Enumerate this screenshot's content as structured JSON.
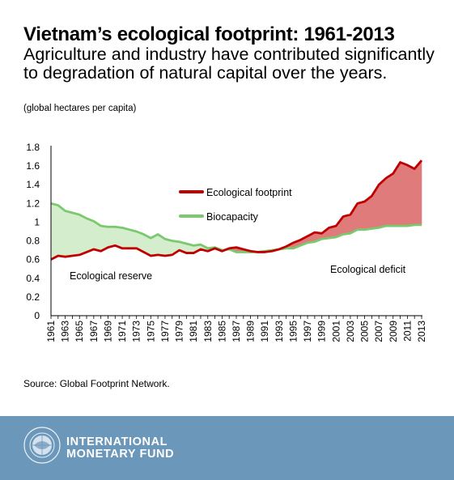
{
  "title": "Vietnam’s ecological footprint: 1961-2013",
  "subtitle": "Agriculture and industry have contributed significantly to degradation of natural capital over the years.",
  "units_note": "(global hectares per capita)",
  "source": "Source: Global Footprint Network.",
  "footer": {
    "org_line1": "INTERNATIONAL",
    "org_line2": "MONETARY FUND",
    "background": "#6b97ba"
  },
  "chart_data": {
    "type": "line",
    "x": [
      1961,
      1962,
      1963,
      1964,
      1965,
      1966,
      1967,
      1968,
      1969,
      1970,
      1971,
      1972,
      1973,
      1974,
      1975,
      1976,
      1977,
      1978,
      1979,
      1980,
      1981,
      1982,
      1983,
      1984,
      1985,
      1986,
      1987,
      1988,
      1989,
      1990,
      1991,
      1992,
      1993,
      1994,
      1995,
      1996,
      1997,
      1998,
      1999,
      2000,
      2001,
      2002,
      2003,
      2004,
      2005,
      2006,
      2007,
      2008,
      2009,
      2010,
      2011,
      2012,
      2013
    ],
    "series": [
      {
        "name": "Ecological footprint",
        "color": "#c00000",
        "values": [
          0.6,
          0.64,
          0.63,
          0.64,
          0.65,
          0.68,
          0.71,
          0.69,
          0.73,
          0.75,
          0.72,
          0.72,
          0.72,
          0.68,
          0.64,
          0.65,
          0.64,
          0.65,
          0.7,
          0.67,
          0.67,
          0.71,
          0.69,
          0.72,
          0.69,
          0.72,
          0.73,
          0.71,
          0.69,
          0.68,
          0.68,
          0.69,
          0.71,
          0.74,
          0.78,
          0.81,
          0.85,
          0.89,
          0.88,
          0.94,
          0.96,
          1.06,
          1.08,
          1.2,
          1.22,
          1.28,
          1.4,
          1.47,
          1.52,
          1.64,
          1.61,
          1.57,
          1.66
        ]
      },
      {
        "name": "Biocapacity",
        "color": "#7ac96f",
        "values": [
          1.2,
          1.18,
          1.12,
          1.1,
          1.08,
          1.04,
          1.01,
          0.96,
          0.95,
          0.95,
          0.94,
          0.92,
          0.9,
          0.87,
          0.83,
          0.87,
          0.82,
          0.8,
          0.79,
          0.77,
          0.75,
          0.76,
          0.72,
          0.73,
          0.7,
          0.71,
          0.68,
          0.68,
          0.68,
          0.68,
          0.69,
          0.7,
          0.71,
          0.72,
          0.72,
          0.75,
          0.78,
          0.79,
          0.82,
          0.83,
          0.84,
          0.87,
          0.88,
          0.92,
          0.92,
          0.93,
          0.94,
          0.96,
          0.96,
          0.96,
          0.96,
          0.97,
          0.97
        ]
      }
    ],
    "fills": {
      "reserve": "#d4edcd",
      "deficit": "#e07b7b"
    },
    "annotations": {
      "reserve": "Ecological reserve",
      "deficit": "Ecological deficit"
    },
    "ylim": [
      0,
      1.8
    ],
    "yticks": [
      "0",
      "0.2",
      "0.4",
      "0.6",
      "0.8",
      "1",
      "1.2",
      "1.4",
      "1.6",
      "1.8"
    ],
    "xticks": [
      "1961",
      "1963",
      "1965",
      "1967",
      "1969",
      "1971",
      "1973",
      "1975",
      "1977",
      "1979",
      "1981",
      "1983",
      "1985",
      "1987",
      "1989",
      "1991",
      "1993",
      "1995",
      "1997",
      "1999",
      "2001",
      "2003",
      "2005",
      "2007",
      "2009",
      "2011",
      "2013"
    ],
    "legend_position": "center",
    "grid": false
  }
}
